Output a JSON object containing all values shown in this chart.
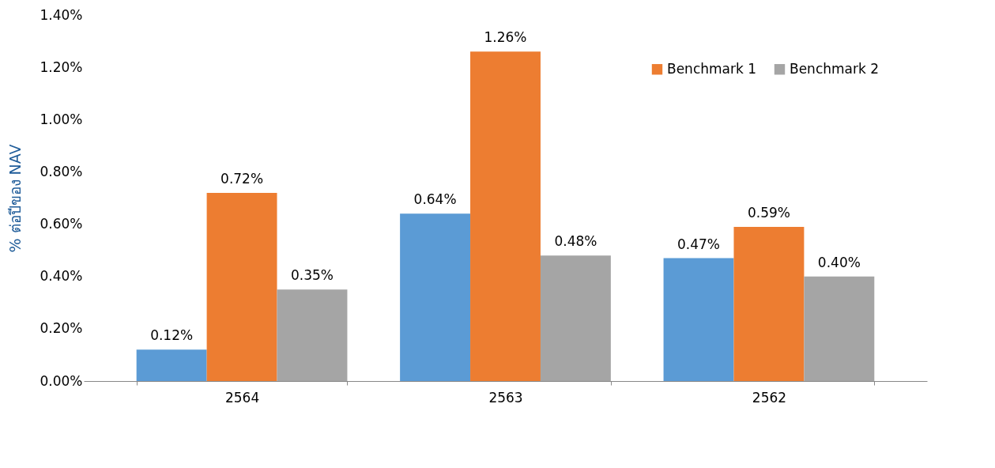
{
  "chart_data": {
    "type": "bar",
    "ylabel": "% ต่อปีของ NAV",
    "categories": [
      "2564",
      "2563",
      "2562"
    ],
    "series": [
      {
        "color": "#5b9bd5",
        "values": [
          0.12,
          0.64,
          0.47
        ],
        "value_labels": [
          "0.12%",
          "0.64%",
          "0.47%"
        ]
      },
      {
        "name": "Benchmark 1",
        "color": "#ed7d31",
        "values": [
          0.72,
          1.26,
          0.59
        ],
        "value_labels": [
          "0.72%",
          "1.26%",
          "0.59%"
        ]
      },
      {
        "name": "Benchmark 2",
        "color": "#a5a5a5",
        "values": [
          0.35,
          0.48,
          0.4
        ],
        "value_labels": [
          "0.35%",
          "0.48%",
          "0.40%"
        ]
      }
    ],
    "ylim": [
      0,
      1.4
    ],
    "yticks": [
      {
        "value": 0,
        "label": "0.00%"
      },
      {
        "value": 0.2,
        "label": "0.20%"
      },
      {
        "value": 0.4,
        "label": "0.40%"
      },
      {
        "value": 0.6,
        "label": "0.60%"
      },
      {
        "value": 0.8,
        "label": "0.80%"
      },
      {
        "value": 1.0,
        "label": "1.00%"
      },
      {
        "value": 1.2,
        "label": "1.20%"
      },
      {
        "value": 1.4,
        "label": "1.40%"
      }
    ],
    "grid": false,
    "legend": "top right"
  }
}
